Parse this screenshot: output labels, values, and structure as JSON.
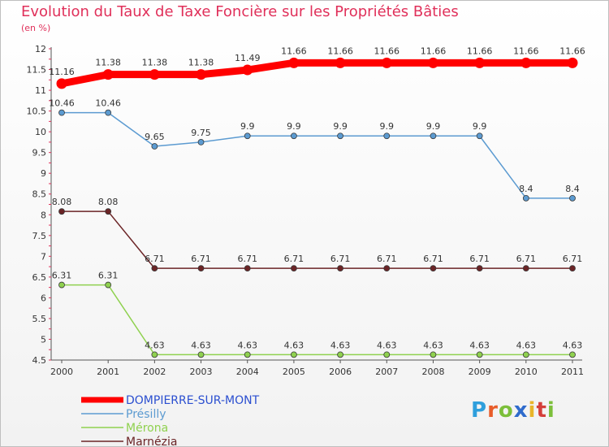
{
  "chart_data": {
    "type": "line",
    "title": "Evolution du Taux de Taxe Foncière sur les Propriétés Bâties",
    "ylabel": "(en %)",
    "xlabel": "",
    "ylim": [
      4.5,
      12
    ],
    "yticks": [
      4.5,
      5,
      5.5,
      6,
      6.5,
      7,
      7.5,
      8,
      8.5,
      9,
      9.5,
      10,
      10.5,
      11,
      11.5,
      12
    ],
    "ytick_labels": [
      "4.5",
      "5",
      "5.5",
      "6",
      "6.5",
      "7",
      "7.5",
      "8",
      "8.5",
      "9",
      "9.5",
      "10",
      "10.5",
      "11",
      "11.5",
      "12"
    ],
    "x": [
      "2000",
      "2001",
      "2002",
      "2003",
      "2004",
      "2005",
      "2006",
      "2007",
      "2008",
      "2009",
      "2010",
      "2011"
    ],
    "series": [
      {
        "name": "DOMPIERRE-SUR-MONT",
        "color": "#ff0000",
        "legend_color": "#2b4fd0",
        "values": [
          11.16,
          11.38,
          11.38,
          11.38,
          11.49,
          11.66,
          11.66,
          11.66,
          11.66,
          11.66,
          11.66,
          11.66
        ],
        "labels": [
          "11.16",
          "11.38",
          "11.38",
          "11.38",
          "11.49",
          "11.66",
          "11.66",
          "11.66",
          "11.66",
          "11.66",
          "11.66",
          "11.66"
        ]
      },
      {
        "name": "Présilly",
        "color": "#5c9bd1",
        "legend_color": "#5c9bd1",
        "values": [
          10.46,
          10.46,
          9.65,
          9.75,
          9.9,
          9.9,
          9.9,
          9.9,
          9.9,
          9.9,
          8.4,
          8.4
        ],
        "labels": [
          "10.46",
          "10.46",
          "9.65",
          "9.75",
          "9.9",
          "9.9",
          "9.9",
          "9.9",
          "9.9",
          "9.9",
          "8.4",
          "8.4"
        ]
      },
      {
        "name": "Mérona",
        "color": "#8fd14f",
        "legend_color": "#8fd14f",
        "values": [
          6.31,
          6.31,
          4.63,
          4.63,
          4.63,
          4.63,
          4.63,
          4.63,
          4.63,
          4.63,
          4.63,
          4.63
        ],
        "labels": [
          "6.31",
          "6.31",
          "4.63",
          "4.63",
          "4.63",
          "4.63",
          "4.63",
          "4.63",
          "4.63",
          "4.63",
          "4.63",
          "4.63"
        ]
      },
      {
        "name": "Marnézia",
        "color": "#6b2426",
        "legend_color": "#6b2426",
        "values": [
          8.08,
          8.08,
          6.71,
          6.71,
          6.71,
          6.71,
          6.71,
          6.71,
          6.71,
          6.71,
          6.71,
          6.71
        ],
        "labels": [
          "8.08",
          "8.08",
          "6.71",
          "6.71",
          "6.71",
          "6.71",
          "6.71",
          "6.71",
          "6.71",
          "6.71",
          "6.71",
          "6.71"
        ]
      }
    ],
    "grid": false,
    "legend_position": "bottom-left"
  },
  "colors": {
    "title": "#e0305a",
    "axis": "#555555"
  },
  "logo": {
    "text": "Proxiti",
    "letters": [
      "P",
      "r",
      "o",
      "x",
      "i",
      "t",
      "i"
    ],
    "colors": [
      "#2f9fdc",
      "#e85d2a",
      "#7cbf3a",
      "#2f6bcc",
      "#e8b52a",
      "#d43f3a",
      "#7cbf3a"
    ]
  }
}
